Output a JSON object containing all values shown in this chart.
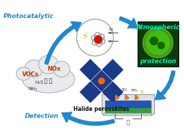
{
  "background_color": "#ffffff",
  "arrow_color": "#2288cc",
  "text_photocatalytic": "Photocatalytic",
  "text_detection": "Detection",
  "text_halide": "Halide perovskites",
  "text_atmospheric": "Atmospheric",
  "text_protection": "protection",
  "text_vocs": "VOCs",
  "text_nox": "NOx",
  "text_h2s": "H₂S",
  "text_nh3": "NH₃",
  "cloud_color": "#e8eaec",
  "cloud_edge_color": "#aab0bb",
  "atm_bg_color": "#0a3a08",
  "atm_text_color": "#00eebb",
  "perovskite_blue": "#1a3a8a",
  "perovskite_orange": "#ff6600",
  "sensor_gray": "#b0bac4",
  "sensor_green": "#3a9a45",
  "sensor_blue": "#2255bb",
  "orange_arrow": "#e07020",
  "yellow_bolt": "#e8c000",
  "fig_w": 2.66,
  "fig_h": 1.89,
  "dpi": 100
}
